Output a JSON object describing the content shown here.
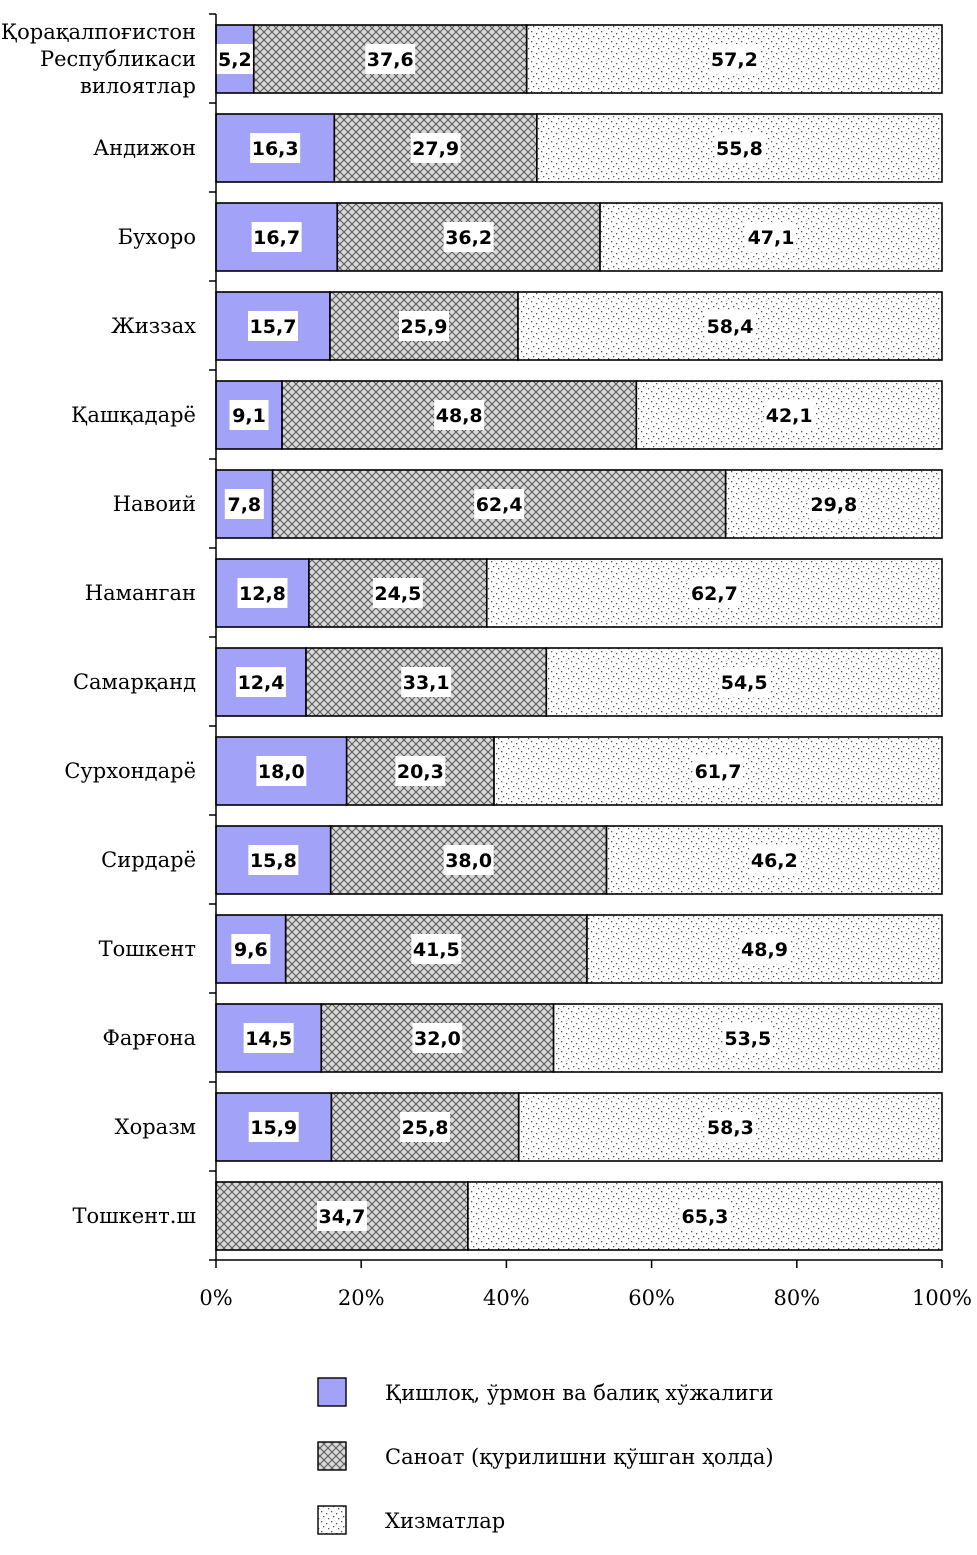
{
  "chart_data": {
    "type": "bar",
    "orientation": "horizontal",
    "stacked": "percent",
    "categories": [
      [
        "Қорақалпоғистон",
        "Республикаси",
        "вилоятлар"
      ],
      [
        "Андижон"
      ],
      [
        "Бухоро"
      ],
      [
        "Жиззах"
      ],
      [
        "Қашқадарё"
      ],
      [
        "Навоий"
      ],
      [
        "Наманган"
      ],
      [
        "Самарқанд"
      ],
      [
        "Сурхондарё"
      ],
      [
        "Сирдарё"
      ],
      [
        "Тошкент"
      ],
      [
        "Фарғона"
      ],
      [
        "Хоразм"
      ],
      [
        "Тошкент.ш"
      ]
    ],
    "series": [
      {
        "name": "Қишлоқ, ўрмон ва балиқ хўжалиги",
        "fill": "solid",
        "color": "#a2a2f8",
        "values": [
          5.2,
          16.3,
          16.7,
          15.7,
          9.1,
          7.8,
          12.8,
          12.4,
          18.0,
          15.8,
          9.6,
          14.5,
          15.9,
          null
        ],
        "labels": [
          "5,2",
          "16,3",
          "16,7",
          "15,7",
          "9,1",
          "7,8",
          "12,8",
          "12,4",
          "18,0",
          "15,8",
          "9,6",
          "14,5",
          "15,9",
          ""
        ]
      },
      {
        "name": "Саноат (қурилишни қўшган ҳолда)",
        "fill": "crosshatch",
        "color": "#555555",
        "values": [
          37.6,
          27.9,
          36.2,
          25.9,
          48.8,
          62.4,
          24.5,
          33.1,
          20.3,
          38.0,
          41.5,
          32.0,
          25.8,
          34.7
        ],
        "labels": [
          "37,6",
          "27,9",
          "36,2",
          "25,9",
          "48,8",
          "62,4",
          "24,5",
          "33,1",
          "20,3",
          "38,0",
          "41,5",
          "32,0",
          "25,8",
          "34,7"
        ]
      },
      {
        "name": "Хизматлар",
        "fill": "dots",
        "color": "#444444",
        "values": [
          57.2,
          55.8,
          47.1,
          58.4,
          42.1,
          29.8,
          62.7,
          54.5,
          61.7,
          46.2,
          48.9,
          53.5,
          58.3,
          65.3
        ],
        "labels": [
          "57,2",
          "55,8",
          "47,1",
          "58,4",
          "42,1",
          "29,8",
          "62,7",
          "54,5",
          "61,7",
          "46,2",
          "48,9",
          "53,5",
          "58,3",
          "65,3"
        ]
      }
    ],
    "x_ticks": [
      "0%",
      "20%",
      "40%",
      "60%",
      "80%",
      "100%"
    ],
    "xlim": [
      0,
      100
    ],
    "grid": false,
    "legend_position": "bottom"
  }
}
